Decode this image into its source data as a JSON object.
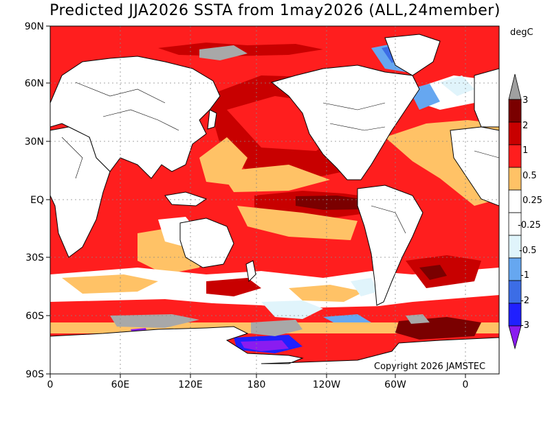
{
  "title": "Predicted JJA2026 SSTA from 1may2026 (ALL,24member)",
  "units": "degC",
  "copyright": "Copyright 2026 JAMSTEC",
  "axes": {
    "lon_ticks": [
      "0",
      "60E",
      "120E",
      "180",
      "120W",
      "60W",
      "0"
    ],
    "lat_ticks": [
      "90N",
      "60N",
      "30N",
      "EQ",
      "30S",
      "60S",
      "90S"
    ]
  },
  "colorbar": {
    "labels": [
      "3",
      "2",
      "1",
      "0.5",
      "0.25",
      "-0.25",
      "-0.5",
      "-1",
      "-2",
      "-3"
    ],
    "colors": [
      "#7a0000",
      "#c80000",
      "#ff1e1e",
      "#ffc266",
      "#ffffff",
      "#ffffff",
      "#e0f4fb",
      "#66a7f0",
      "#3c6de6",
      "#2020ff"
    ],
    "top_color": "#a0a0a0",
    "bottom_color": "#8a1cf0"
  },
  "palette": {
    "land": "#ffffff",
    "ice": "#a8a8a8",
    "coast": "#000000"
  }
}
